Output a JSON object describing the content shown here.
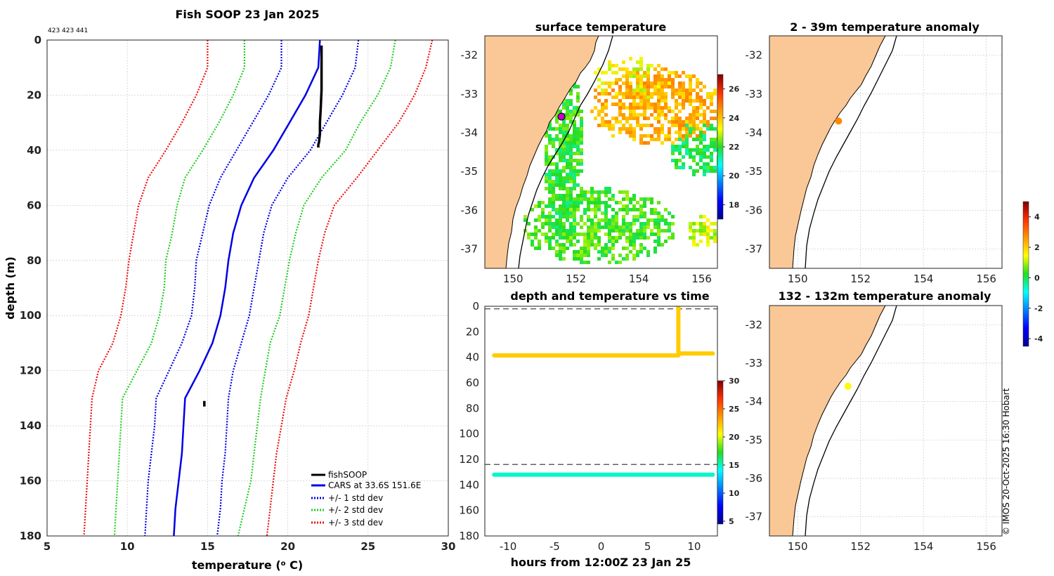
{
  "figure": {
    "title": "Fish SOOP 23 Jan 2025",
    "id_text": "423 423 441",
    "footer": "© IMOS 20-Oct-2025 16:30 Hobart"
  },
  "profile": {
    "xlabel": "temperature (",
    "xlabel_sup": "o",
    "xlabel_tail": " C)",
    "ylabel": "depth (m)",
    "legend": [
      "fishSOOP",
      "CARS at 33.6S 151.6E",
      "+/- 1 std dev",
      "+/- 2 std dev",
      "+/- 3 std dev"
    ]
  },
  "sst": {
    "title": "surface temperature"
  },
  "anom1": {
    "title": "2 - 39m temperature anomaly"
  },
  "anom2": {
    "title": "132 - 132m temperature anomaly"
  },
  "timeplot": {
    "title": "depth and temperature vs time",
    "xlabel": "hours from 12:00Z 23 Jan 25"
  },
  "colors": {
    "fish": "#000000",
    "cars": "#0000e6",
    "std1": "#0000e6",
    "std2": "#22cc22",
    "std3": "#ee1111",
    "land": "#f9c896",
    "grid": "#c8c8c8",
    "dash": "#606060"
  },
  "chart_data": [
    {
      "type": "line",
      "name": "temperature-profile",
      "title": "Fish SOOP 23 Jan 2025",
      "xlabel": "temperature (o C)",
      "ylabel": "depth (m)",
      "xlim": [
        5,
        30
      ],
      "ylim": [
        180,
        0
      ],
      "xticks": [
        5,
        10,
        15,
        20,
        25,
        30
      ],
      "yticks": [
        0,
        20,
        40,
        60,
        80,
        100,
        120,
        140,
        160,
        180
      ],
      "grid": true,
      "legend_position": "bottom-right",
      "depth": [
        0,
        10,
        20,
        30,
        40,
        50,
        60,
        70,
        80,
        90,
        100,
        110,
        120,
        130,
        140,
        150,
        160,
        170,
        180
      ],
      "series": [
        {
          "name": "CARS at 33.6S 151.6E",
          "style": "solid",
          "values": [
            22.0,
            21.9,
            21.1,
            20.1,
            19.1,
            17.9,
            17.1,
            16.6,
            16.3,
            16.1,
            15.8,
            15.3,
            14.5,
            13.6,
            13.5,
            13.4,
            13.2,
            13.0,
            12.9
          ]
        },
        {
          "name": "+/- 1 std dev (upper)",
          "style": "dotted",
          "values": [
            24.4,
            24.2,
            23.4,
            22.4,
            21.4,
            20.0,
            19.0,
            18.5,
            18.2,
            17.9,
            17.6,
            17.1,
            16.6,
            16.3,
            16.2,
            16.1,
            15.9,
            15.8,
            15.6
          ]
        },
        {
          "name": "+/- 1 std dev (lower)",
          "style": "dotted",
          "values": [
            19.6,
            19.6,
            18.8,
            17.8,
            16.8,
            15.8,
            15.1,
            14.7,
            14.3,
            14.2,
            14.0,
            13.4,
            12.6,
            11.8,
            11.7,
            11.5,
            11.3,
            11.2,
            11.1
          ]
        },
        {
          "name": "+/- 2 std dev (upper)",
          "style": "dotted",
          "values": [
            26.7,
            26.4,
            25.6,
            24.5,
            23.6,
            22.1,
            21.0,
            20.5,
            20.1,
            19.8,
            19.5,
            18.9,
            18.6,
            18.3,
            18.1,
            17.9,
            17.7,
            17.3,
            16.9
          ]
        },
        {
          "name": "+/- 2 std dev (lower)",
          "style": "dotted",
          "values": [
            17.3,
            17.3,
            16.6,
            15.7,
            14.7,
            13.6,
            13.1,
            12.8,
            12.4,
            12.3,
            12.0,
            11.5,
            10.6,
            9.7,
            9.6,
            9.5,
            9.4,
            9.3,
            9.2
          ]
        },
        {
          "name": "+/- 3 std dev (upper)",
          "style": "dotted",
          "values": [
            29.0,
            28.6,
            27.9,
            26.9,
            25.6,
            24.3,
            22.9,
            22.3,
            21.9,
            21.6,
            21.3,
            20.8,
            20.4,
            19.9,
            19.6,
            19.3,
            19.1,
            18.9,
            18.7
          ]
        },
        {
          "name": "+/- 3 std dev (lower)",
          "style": "dotted",
          "values": [
            15.0,
            15.0,
            14.3,
            13.4,
            12.4,
            11.3,
            10.7,
            10.4,
            10.1,
            9.9,
            9.6,
            9.1,
            8.2,
            7.8,
            7.7,
            7.6,
            7.5,
            7.4,
            7.3
          ]
        }
      ],
      "fishSOOP": {
        "name": "fishSOOP",
        "temperature": [
          22.1,
          22.1,
          22.1,
          22.05,
          22.0,
          22.0,
          21.95,
          21.9,
          21.9
        ],
        "depth": [
          2,
          10,
          18,
          25,
          30,
          34,
          37,
          38,
          39
        ],
        "deep_temperature": [
          14.8,
          14.8
        ],
        "deep_depth": [
          131,
          133
        ]
      }
    },
    {
      "type": "heatmap",
      "name": "surface-temperature-map",
      "title": "surface temperature",
      "xlim": [
        149.1,
        156.5
      ],
      "ylim": [
        -37.5,
        -31.5
      ],
      "xticks": [
        150,
        152,
        154,
        156
      ],
      "yticks": [
        -32,
        -33,
        -34,
        -35,
        -36,
        -37
      ],
      "colorbar_ticks": [
        18,
        20,
        22,
        24,
        26
      ],
      "colorbar_range": [
        17,
        27
      ],
      "marker": {
        "lon": 151.6,
        "lat": -33.6
      }
    },
    {
      "type": "scatter",
      "name": "anomaly-map-2-39m",
      "title": "2 - 39m temperature anomaly",
      "xlim": [
        149.1,
        156.5
      ],
      "ylim": [
        -37.5,
        -31.5
      ],
      "xticks": [
        150,
        152,
        154,
        156
      ],
      "yticks": [
        -32,
        -33,
        -34,
        -35,
        -36,
        -37
      ],
      "points": [
        {
          "lon": 151.3,
          "lat": -33.7,
          "anomaly": 2.8
        }
      ]
    },
    {
      "type": "scatter",
      "name": "anomaly-map-132m",
      "title": "132 - 132m temperature anomaly",
      "xlim": [
        149.1,
        156.5
      ],
      "ylim": [
        -37.5,
        -31.5
      ],
      "xticks": [
        150,
        152,
        154,
        156
      ],
      "yticks": [
        -32,
        -33,
        -34,
        -35,
        -36,
        -37
      ],
      "points": [
        {
          "lon": 151.6,
          "lat": -33.6,
          "anomaly": 1.5
        }
      ],
      "colorbar_ticks": [
        4,
        2,
        0,
        -2,
        -4
      ],
      "colorbar_range": [
        -4.5,
        5
      ]
    },
    {
      "type": "scatter",
      "name": "depth-temperature-vs-time",
      "title": "depth and temperature vs time",
      "xlabel": "hours from 12:00Z 23 Jan 25",
      "xlim": [
        -12.5,
        12.5
      ],
      "ylim": [
        180,
        0
      ],
      "xticks": [
        -10,
        -5,
        0,
        5,
        10
      ],
      "yticks": [
        0,
        20,
        40,
        60,
        80,
        100,
        120,
        140,
        160,
        180
      ],
      "reference_depths": [
        2,
        124
      ],
      "colorbar_ticks": [
        5,
        10,
        15,
        20,
        25,
        30
      ],
      "colorbar_range": [
        4.5,
        30
      ],
      "segments": [
        {
          "t_start": -11.5,
          "t_end": 8.3,
          "depth": 38.5,
          "temperature": 22
        },
        {
          "t_start": 8.3,
          "t_end": 12.0,
          "depth": 37,
          "temperature": 22
        },
        {
          "t_start": -11.5,
          "t_end": 12.0,
          "depth": 132,
          "temperature": 14.8
        }
      ],
      "descent": {
        "t": 8.3,
        "depth_from": 0,
        "depth_to": 38,
        "temperature": 22
      }
    }
  ]
}
